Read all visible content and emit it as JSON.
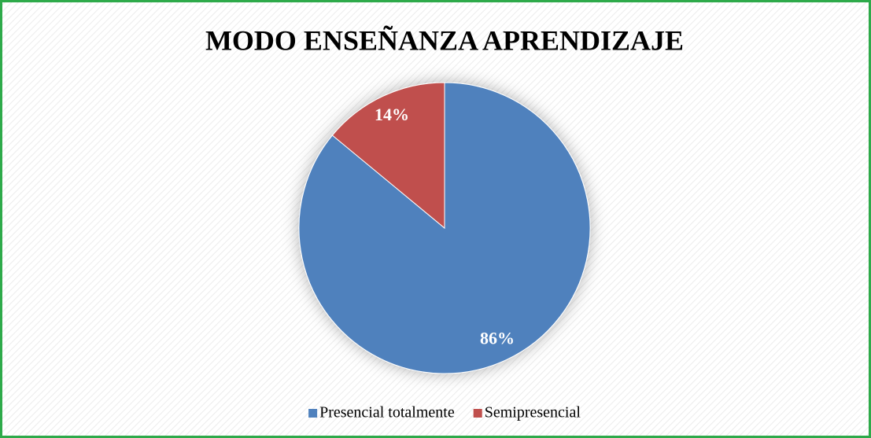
{
  "chart_data": {
    "type": "pie",
    "title": "MODO ENSEÑANZA APRENDIZAJE",
    "categories": [
      "Presencial totalmente",
      "Semipresencial"
    ],
    "values": [
      86,
      14
    ],
    "value_labels": [
      "86%",
      "14%"
    ],
    "colors": [
      "#4f81bd",
      "#c0504d"
    ],
    "legend": "bottom"
  }
}
